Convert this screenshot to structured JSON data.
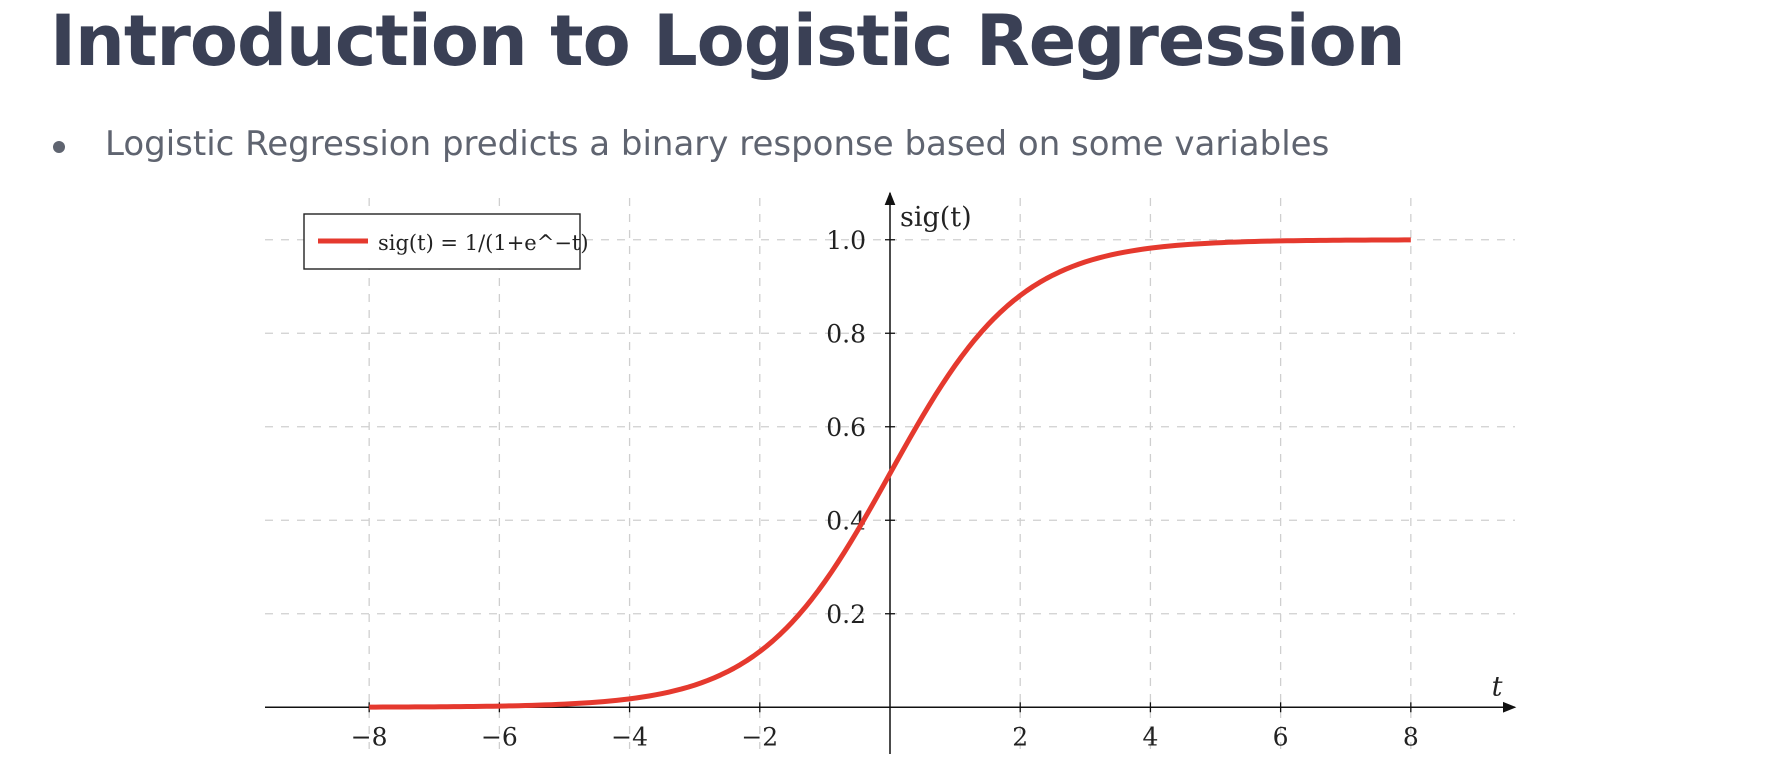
{
  "slide": {
    "title": "Introduction to Logistic Regression",
    "bullets": [
      "Logistic Regression predicts a binary response based on some variables"
    ]
  },
  "chart_data": {
    "type": "line",
    "function": "sig(t) = 1/(1+e^-t)",
    "x_range": [
      -8,
      8
    ],
    "xlim": [
      -9.6,
      9.6
    ],
    "ylim": [
      -0.1,
      1.1
    ],
    "x_ticks": [
      -8,
      -6,
      -4,
      -2,
      2,
      4,
      6,
      8
    ],
    "x_tick_labels": [
      "−8",
      "−6",
      "−4",
      "−2",
      "2",
      "4",
      "6",
      "8"
    ],
    "y_ticks": [
      0.2,
      0.4,
      0.6,
      0.8,
      1.0
    ],
    "y_tick_labels": [
      "0.2",
      "0.4",
      "0.6",
      "0.8",
      "1.0"
    ],
    "xlabel": "t",
    "ylabel": "sig(t)",
    "grid": true,
    "legend_position": "top-left",
    "series": [
      {
        "name": "sig(t) = 1/(1+e^−t)",
        "color": "#e5392e",
        "x": [
          -8,
          -7,
          -6,
          -5,
          -4,
          -3.5,
          -3,
          -2.5,
          -2,
          -1.5,
          -1,
          -0.5,
          0,
          0.5,
          1,
          1.5,
          2,
          2.5,
          3,
          3.5,
          4,
          5,
          6,
          7,
          8
        ],
        "y": [
          0.0003,
          0.0009,
          0.0025,
          0.0067,
          0.018,
          0.0293,
          0.0474,
          0.0759,
          0.1192,
          0.1824,
          0.2689,
          0.3775,
          0.5,
          0.6225,
          0.7311,
          0.8176,
          0.8808,
          0.9241,
          0.9526,
          0.9707,
          0.982,
          0.9933,
          0.9975,
          0.9991,
          0.9997
        ]
      }
    ]
  }
}
